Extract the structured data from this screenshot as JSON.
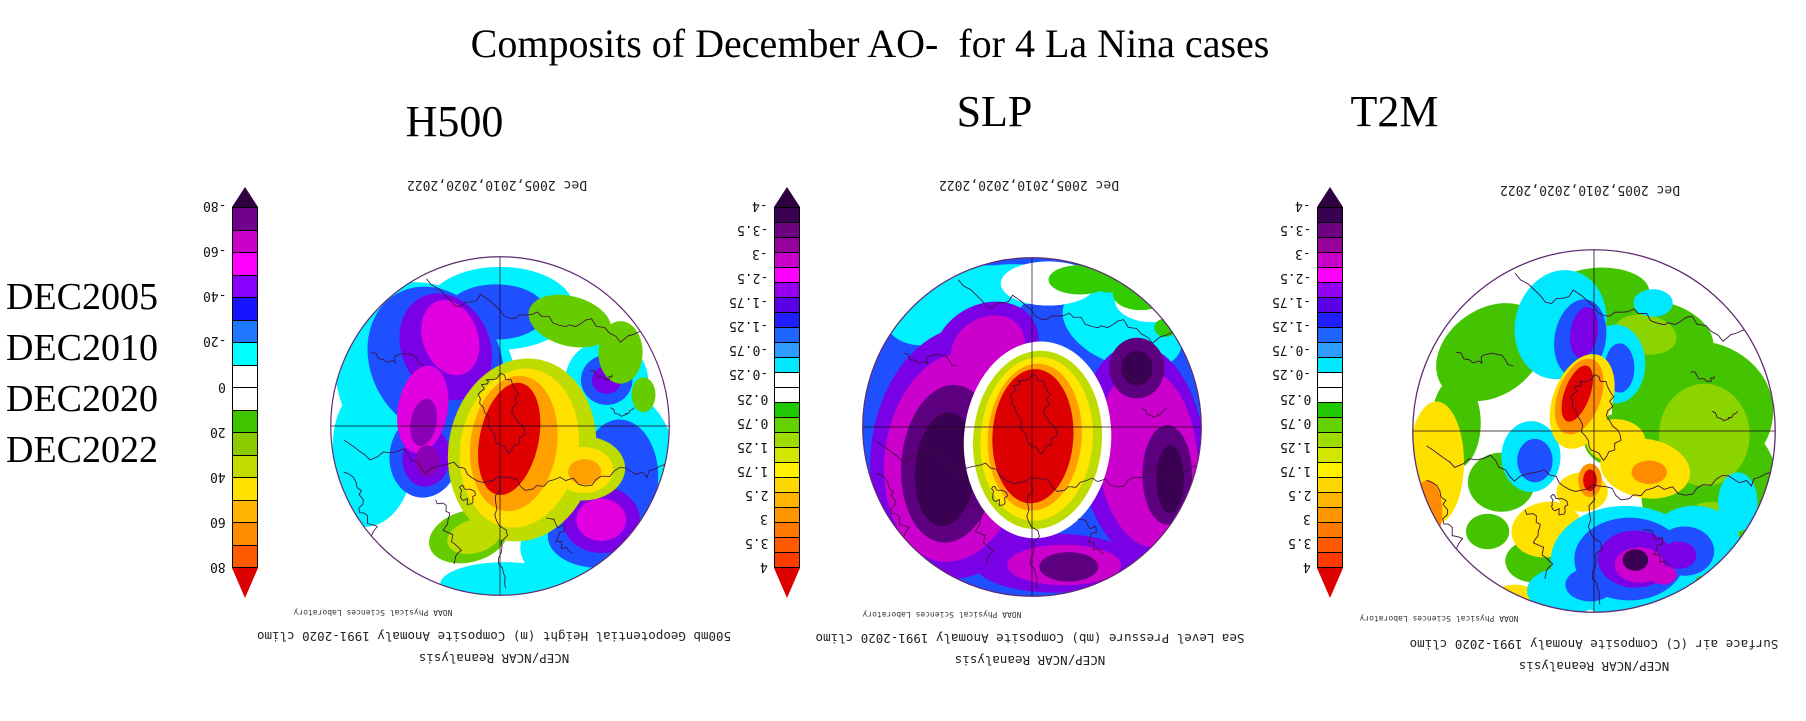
{
  "title": "Composits of December AO-  for 4 La Nina cases",
  "row_labels": [
    "DEC2005",
    "DEC2010",
    "DEC2020",
    "DEC2022"
  ],
  "panels": [
    {
      "id": "h500",
      "header": "H500",
      "top_caption": "Dec 2005,2010,2020,2022",
      "noaa_label": "NOAA Physical Sciences Laboratory",
      "caption_line1": "500mb Geopotential Height (m) Composite Anomaly 1991-2020 climo",
      "caption_line2": "NCEP/NCAR Reanalysis",
      "colorbar": {
        "ticks": [
          "-80",
          "-60",
          "-40",
          "-20",
          "0",
          "20",
          "40",
          "60",
          "80"
        ],
        "cells": [
          "#70008C",
          "#C800C8",
          "#FF00FF",
          "#8A00FF",
          "#1414FF",
          "#1E78FF",
          "#00FFFF",
          "#FFFFFF",
          "#FFFFFF",
          "#3FC400",
          "#8CCB00",
          "#C3DC00",
          "#FFE100",
          "#FFB400",
          "#FF8C00",
          "#FF5A00"
        ],
        "arrow_top": "#2E0040",
        "arrow_bottom": "#DD0000"
      }
    },
    {
      "id": "slp",
      "header": "SLP",
      "top_caption": "Dec 2005,2010,2020,2022",
      "noaa_label": "NOAA Physical Sciences Laboratory",
      "caption_line1": "Sea Level Pressure (mb) Composite Anomaly 1991-2020 climo",
      "caption_line2": "NCEP/NCAR Reanalysis",
      "colorbar": {
        "ticks": [
          "-4",
          "-3.5",
          "-3",
          "-2.5",
          "-1.75",
          "-1.25",
          "-0.75",
          "-0.25",
          "0.25",
          "0.75",
          "1.25",
          "1.75",
          "2.5",
          "3",
          "3.5",
          "4"
        ],
        "cells": [
          "#3A0052",
          "#6E0082",
          "#96009B",
          "#C800C8",
          "#FF00FF",
          "#9600F0",
          "#5A00E6",
          "#1E1EFF",
          "#1E64FF",
          "#2E9BFF",
          "#00E8FF",
          "#FFFFFF",
          "#FFFFFF",
          "#1FC800",
          "#64D200",
          "#A0DC00",
          "#D2E600",
          "#FFF000",
          "#FFD700",
          "#FFB400",
          "#FF9600",
          "#FF7800",
          "#FF5A00",
          "#FF3C00"
        ],
        "arrow_top": "#2E0040",
        "arrow_bottom": "#DD0000"
      }
    },
    {
      "id": "t2m",
      "header": "T2M",
      "top_caption": "Dec 2005,2010,2020,2022",
      "noaa_label": "NOAA Physical Sciences Laboratory",
      "caption_line1": "Surface air (C) Composite Anomaly 1991-2020 climo",
      "caption_line2": "NCEP/NCAR Reanalysis",
      "colorbar": {
        "ticks": [
          "-4",
          "-3.5",
          "-3",
          "-2.5",
          "-1.75",
          "-1.25",
          "-0.75",
          "-0.25",
          "0.25",
          "0.75",
          "1.25",
          "1.75",
          "2.5",
          "3",
          "3.5",
          "4"
        ],
        "cells": [
          "#3A0052",
          "#6E0082",
          "#96009B",
          "#C800C8",
          "#FF00FF",
          "#9600F0",
          "#5A00E6",
          "#1E1EFF",
          "#1E64FF",
          "#2E9BFF",
          "#00E8FF",
          "#FFFFFF",
          "#FFFFFF",
          "#1FC800",
          "#64D200",
          "#A0DC00",
          "#D2E600",
          "#FFF000",
          "#FFD700",
          "#FFB400",
          "#FF9600",
          "#FF7800",
          "#FF5A00",
          "#FF3C00"
        ],
        "arrow_top": "#2E0040",
        "arrow_bottom": "#DD0000"
      }
    }
  ],
  "chart_data": [
    {
      "type": "heatmap",
      "subtype": "polar-stereographic anomaly map, rendered rotated 180 degrees",
      "title": "H500",
      "variable": "500mb Geopotential Height (m) Composite Anomaly",
      "composite_months": "Dec 2005,2010,2020,2022",
      "climatology": "1991-2020 climo",
      "source": "NCEP/NCAR Reanalysis, NOAA Physical Sciences Laboratory",
      "colorbar_ticks": [
        -80,
        -60,
        -40,
        -20,
        0,
        20,
        40,
        60,
        80
      ],
      "units": "m",
      "pattern": "large positive anomaly (>+80 m, red) centered over the Arctic, ringed by negative anomalies down to -60/-80 m (blue/magenta) in the midlatitudes; weak positive (green) patch upper right"
    },
    {
      "type": "heatmap",
      "subtype": "polar-stereographic anomaly map, rendered rotated 180 degrees",
      "title": "SLP",
      "variable": "Sea Level Pressure (mb) Composite Anomaly",
      "composite_months": "Dec 2005,2010,2020,2022",
      "climatology": "1991-2020 climo",
      "source": "NCEP/NCAR Reanalysis, NOAA Physical Sciences Laboratory",
      "colorbar_ticks": [
        -4,
        -3.5,
        -3,
        -2.5,
        -1.75,
        -1.25,
        -0.75,
        -0.25,
        0.25,
        0.75,
        1.25,
        1.75,
        2.5,
        3,
        3.5,
        4
      ],
      "units": "mb",
      "pattern": "strong positive anomaly (>+4 mb, red) over the Arctic surrounded by broad negative anomalies (violet/magenta with dark purple cores < -4 mb) over the North Pacific and North Atlantic; weak positive (green/cyan) near outer edge"
    },
    {
      "type": "heatmap",
      "subtype": "polar-stereographic anomaly map, rendered rotated 180 degrees",
      "title": "T2M",
      "variable": "Surface air (C) Composite Anomaly",
      "composite_months": "Dec 2005,2010,2020,2022",
      "climatology": "1991-2020 climo",
      "source": "NCEP/NCAR Reanalysis, NOAA Physical Sciences Laboratory",
      "colorbar_ticks": [
        -4,
        -3.5,
        -3,
        -2.5,
        -1.75,
        -1.25,
        -0.75,
        -0.25,
        0.25,
        0.75,
        1.25,
        1.75,
        2.5,
        3,
        3.5,
        4
      ],
      "units": "C",
      "pattern": "warm anomalies (green/yellow, +0.5 to +2 C) over North America and subtropics, warm core (red, >+4 C) near Greenland/Arctic, cold anomalies (blue/purple, -1 to -4 C) over Eurasia with dark cold core over Siberia"
    }
  ]
}
